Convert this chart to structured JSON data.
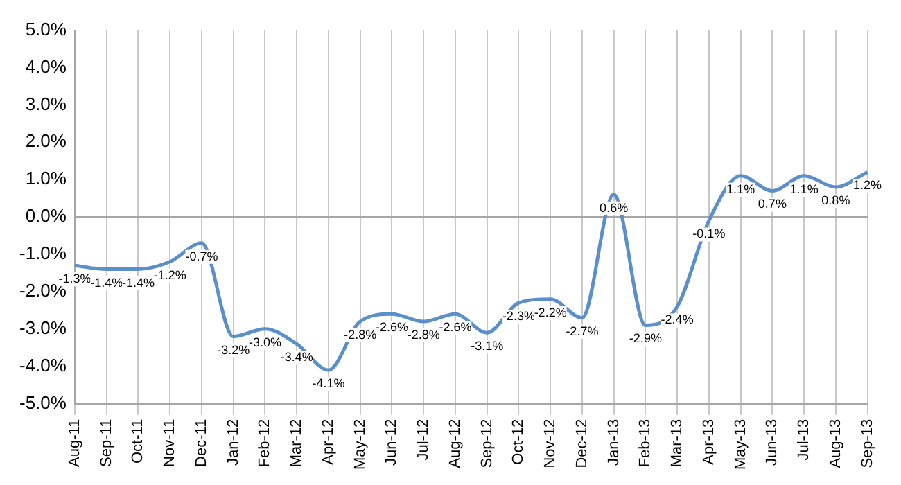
{
  "chart_data": {
    "type": "line",
    "categories": [
      "Aug-11",
      "Sep-11",
      "Oct-11",
      "Nov-11",
      "Dec-11",
      "Jan-12",
      "Feb-12",
      "Mar-12",
      "Apr-12",
      "May-12",
      "Jun-12",
      "Jul-12",
      "Aug-12",
      "Sep-12",
      "Oct-12",
      "Nov-12",
      "Dec-12",
      "Jan-13",
      "Feb-13",
      "Mar-13",
      "Apr-13",
      "May-13",
      "Jun-13",
      "Jul-13",
      "Aug-13",
      "Sep-13"
    ],
    "series": [
      {
        "color": "#5b8fc9",
        "values": [
          -1.3,
          -1.4,
          -1.4,
          -1.2,
          -0.7,
          -3.2,
          -3.0,
          -3.4,
          -4.1,
          -2.8,
          -2.6,
          -2.8,
          -2.6,
          -3.1,
          -2.3,
          -2.2,
          -2.7,
          0.6,
          -2.9,
          -2.4,
          -0.1,
          1.1,
          0.7,
          1.1,
          0.8,
          1.2
        ],
        "value_labels": [
          "-1.3%",
          "-1.4%",
          "-1.4%",
          "-1.2%",
          "-0.7%",
          "-3.2%",
          "-3.0%",
          "-3.4%",
          "-4.1%",
          "-2.8%",
          "-2.6%",
          "-2.8%",
          "-2.6%",
          "-3.1%",
          "-2.3%",
          "-2.2%",
          "-2.7%",
          "0.6%",
          "-2.9%",
          "-2.4%",
          "-0.1%",
          "1.1%",
          "0.7%",
          "1.1%",
          "0.8%",
          "1.2%"
        ]
      }
    ],
    "ylim": [
      -5,
      5
    ],
    "yticks": [
      {
        "value": 5,
        "label": "5.0%"
      },
      {
        "value": 4,
        "label": "4.0%"
      },
      {
        "value": 3,
        "label": "3.0%"
      },
      {
        "value": 2,
        "label": "2.0%"
      },
      {
        "value": 1,
        "label": "1.0%"
      },
      {
        "value": 0,
        "label": "0.0%"
      },
      {
        "value": -1,
        "label": "-1.0%"
      },
      {
        "value": -2,
        "label": "-2.0%"
      },
      {
        "value": -3,
        "label": "-3.0%"
      },
      {
        "value": -4,
        "label": "-4.0%"
      },
      {
        "value": -5,
        "label": "-5.0%"
      }
    ],
    "ref_lines": [
      {
        "axis": "y",
        "value": 0,
        "color": "#a6a6a6"
      }
    ],
    "grid": "x",
    "legend": false,
    "marker": "none",
    "line_style": "solid"
  }
}
